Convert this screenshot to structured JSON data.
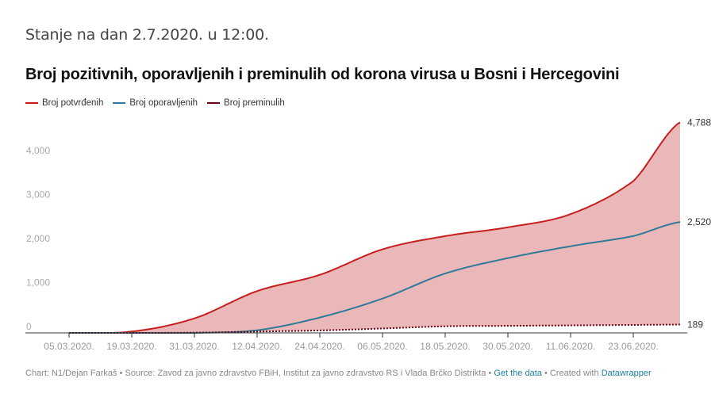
{
  "header": {
    "subtitle": "Stanje na dan 2.7.2020. u 12:00.",
    "title": "Broj pozitivnih, oporavljenih i preminulih od korona virusa u Bosni i Hercegovini"
  },
  "legend": [
    {
      "label": "Broj potvrđenih",
      "color": "#c71e1d"
    },
    {
      "label": "Broj oporavljenih",
      "color": "#2d7a9a"
    },
    {
      "label": "Broj preminulih",
      "color": "#6b0010"
    }
  ],
  "chart_data": {
    "type": "area",
    "title": "Broj pozitivnih, oporavljenih i preminulih od korona virusa u Bosni i Hercegovini",
    "subtitle": "Stanje na dan 2.7.2020. u 12:00.",
    "xlabel": "",
    "ylabel": "",
    "ylim": [
      0,
      4800
    ],
    "yticks": [
      0,
      1000,
      2000,
      3000,
      4000
    ],
    "ytick_labels": [
      "0",
      "1,000",
      "2,000",
      "3,000",
      "4,000"
    ],
    "xtick_labels": [
      "05.03.2020.",
      "19.03.2020.",
      "31.03.2020.",
      "12.04.2020.",
      "24.04.2020.",
      "06.05.2020.",
      "18.05.2020.",
      "30.05.2020.",
      "11.06.2020.",
      "23.06.2020."
    ],
    "grid": false,
    "legend_position": "top-left",
    "x": [
      "05.03.2020.",
      "19.03.2020.",
      "31.03.2020.",
      "12.04.2020.",
      "24.04.2020.",
      "06.05.2020.",
      "18.05.2020.",
      "30.05.2020.",
      "11.06.2020.",
      "23.06.2020.",
      "02.07.2020."
    ],
    "series": [
      {
        "name": "Broj potvrđenih",
        "color": "#c71e1d",
        "values": [
          0,
          30,
          330,
          950,
          1320,
          1900,
          2200,
          2400,
          2700,
          3450,
          4788
        ],
        "end_label": "4,788"
      },
      {
        "name": "Broj oporavljenih",
        "color": "#2d7a9a",
        "values": [
          0,
          0,
          0,
          60,
          350,
          780,
          1350,
          1700,
          1970,
          2200,
          2520
        ],
        "end_label": "2,520"
      },
      {
        "name": "Broj preminulih",
        "color": "#6b0010",
        "values": [
          0,
          0,
          5,
          30,
          55,
          100,
          150,
          160,
          170,
          180,
          189
        ],
        "end_label": "189"
      }
    ],
    "area_fill": "#ebb8b9"
  },
  "footer": {
    "chart_credit": "Chart: N1/Dejan Farkaš",
    "source": "Source: Zavod za javno zdravstvo FBiH, Institut za javno zdravstvo RS i Vlada Brčko Distrikta",
    "get_data": "Get the data",
    "created_with": "Created with",
    "datawrapper": "Datawrapper",
    "separator": " • "
  }
}
